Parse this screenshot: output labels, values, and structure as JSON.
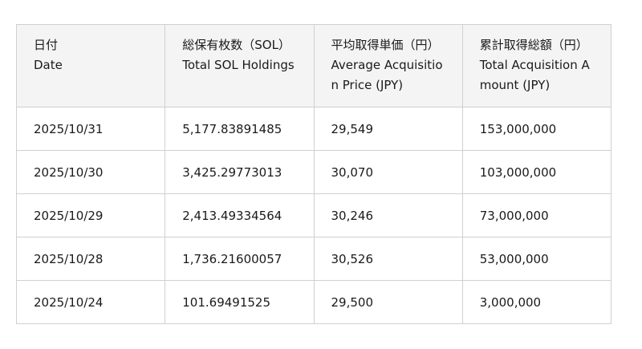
{
  "table": {
    "columns": [
      {
        "ja": "日付",
        "en": "Date"
      },
      {
        "ja": "総保有枚数（SOL）",
        "en": "Total SOL Holdings"
      },
      {
        "ja": "平均取得単価（円）",
        "en": "Average Acquisition Price (JPY)"
      },
      {
        "ja": "累計取得総額（円）",
        "en": "Total Acquisition Amount (JPY)"
      }
    ],
    "rows": [
      [
        "2025/10/31",
        "5,177.83891485",
        "29,549",
        "153,000,000"
      ],
      [
        "2025/10/30",
        "3,425.29773013",
        "30,070",
        "103,000,000"
      ],
      [
        "2025/10/29",
        "2,413.49334564",
        "30,246",
        "73,000,000"
      ],
      [
        "2025/10/28",
        "1,736.21600057",
        "30,526",
        "53,000,000"
      ],
      [
        "2025/10/24",
        "101.69491525",
        "29,500",
        "3,000,000"
      ]
    ]
  }
}
